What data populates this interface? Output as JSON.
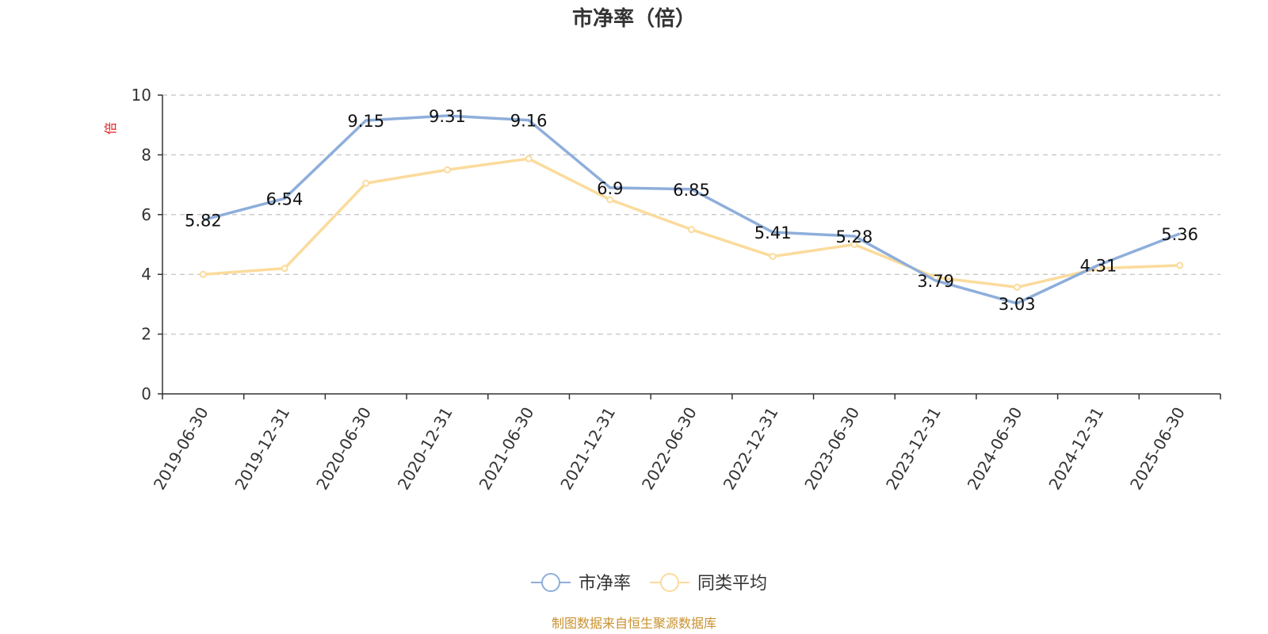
{
  "chart_data": {
    "type": "line",
    "title": "市净率（倍）",
    "ylabel": "倍",
    "xlabel": "",
    "ylim": [
      0,
      10
    ],
    "yticks": [
      0,
      2,
      4,
      6,
      8,
      10
    ],
    "grid": true,
    "legend_position": "bottom-center",
    "categories": [
      "2019-06-30",
      "2019-12-31",
      "2020-06-30",
      "2020-12-31",
      "2021-06-30",
      "2021-12-31",
      "2022-06-30",
      "2022-12-31",
      "2023-06-30",
      "2023-12-31",
      "2024-06-30",
      "2024-12-31",
      "2025-06-30"
    ],
    "series": [
      {
        "name": "市净率",
        "color": "#8eaedb",
        "labeled": true,
        "values": [
          5.82,
          6.54,
          9.15,
          9.31,
          9.16,
          6.9,
          6.85,
          5.41,
          5.28,
          3.79,
          3.03,
          4.31,
          5.36
        ]
      },
      {
        "name": "同类平均",
        "color": "#fbdb9c",
        "labeled": false,
        "values": [
          4.0,
          4.2,
          7.05,
          7.5,
          7.87,
          6.5,
          5.5,
          4.6,
          5.0,
          3.9,
          3.57,
          4.2,
          4.3
        ]
      }
    ],
    "source": "制图数据来自恒生聚源数据库"
  }
}
